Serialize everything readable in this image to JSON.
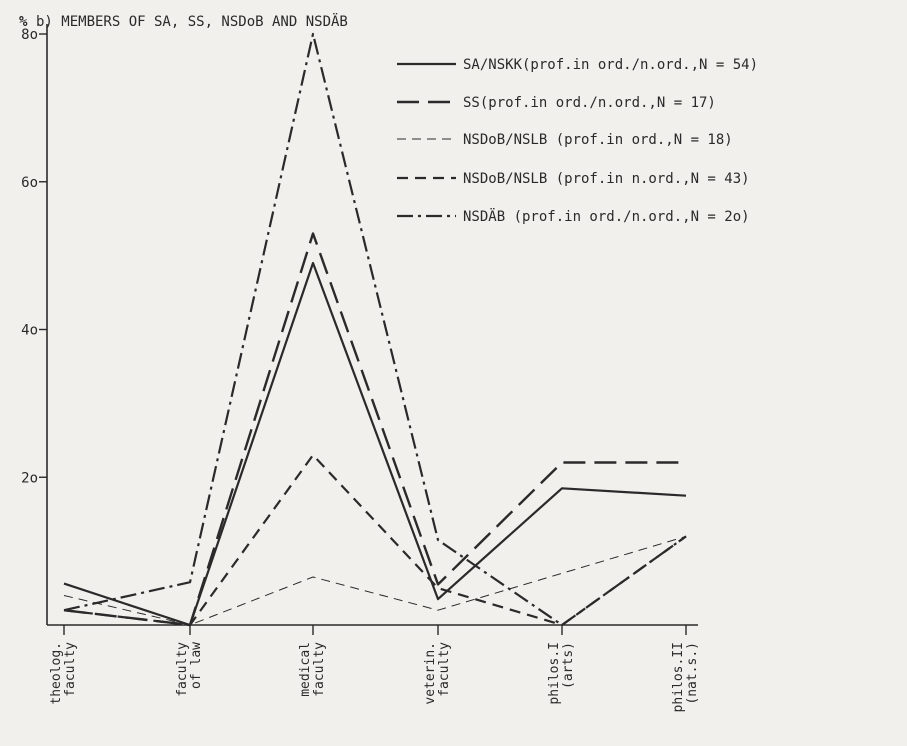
{
  "chart_data": {
    "type": "line",
    "title_prefix": "%",
    "title": "b) MEMBERS OF SA, SS, NSDoB AND NSDÄB",
    "categories": [
      [
        "theolog.",
        "faculty"
      ],
      [
        "faculty",
        "of law"
      ],
      [
        "medical",
        "faculty"
      ],
      [
        "veterin.",
        "faculty"
      ],
      [
        "philos.I",
        "(arts)"
      ],
      [
        "philos.II",
        "(nat.s.)"
      ]
    ],
    "y_ticks": [
      "2o",
      "4o",
      "6o",
      "8o"
    ],
    "y_tick_values": [
      20,
      40,
      60,
      80
    ],
    "ylim": [
      0,
      80
    ],
    "legend_position": "top-right",
    "series": [
      {
        "name": "SA/NSKK(prof.in ord./n.ord.,N = 54)",
        "style": "solid",
        "values": [
          5.6,
          0,
          49,
          3.5,
          18.5,
          17.5
        ]
      },
      {
        "name": "SS(prof.in ord./n.ord.,N = 17)",
        "style": "longdash",
        "values": [
          2,
          0,
          53,
          5.5,
          22,
          22
        ]
      },
      {
        "name": "NSDoB/NSLB (prof.in ord.,N = 18)",
        "style": "thindash",
        "values": [
          4,
          0,
          6.5,
          2,
          7,
          12
        ]
      },
      {
        "name": "NSDoB/NSLB (prof.in n.ord.,N = 43)",
        "style": "dash",
        "values": [
          2,
          0,
          23,
          5,
          0,
          12
        ]
      },
      {
        "name": "NSDÄB (prof.in ord./n.ord.,N = 2o)",
        "style": "dashdot",
        "values": [
          2,
          5.8,
          80,
          11.5,
          0,
          12
        ]
      }
    ]
  }
}
